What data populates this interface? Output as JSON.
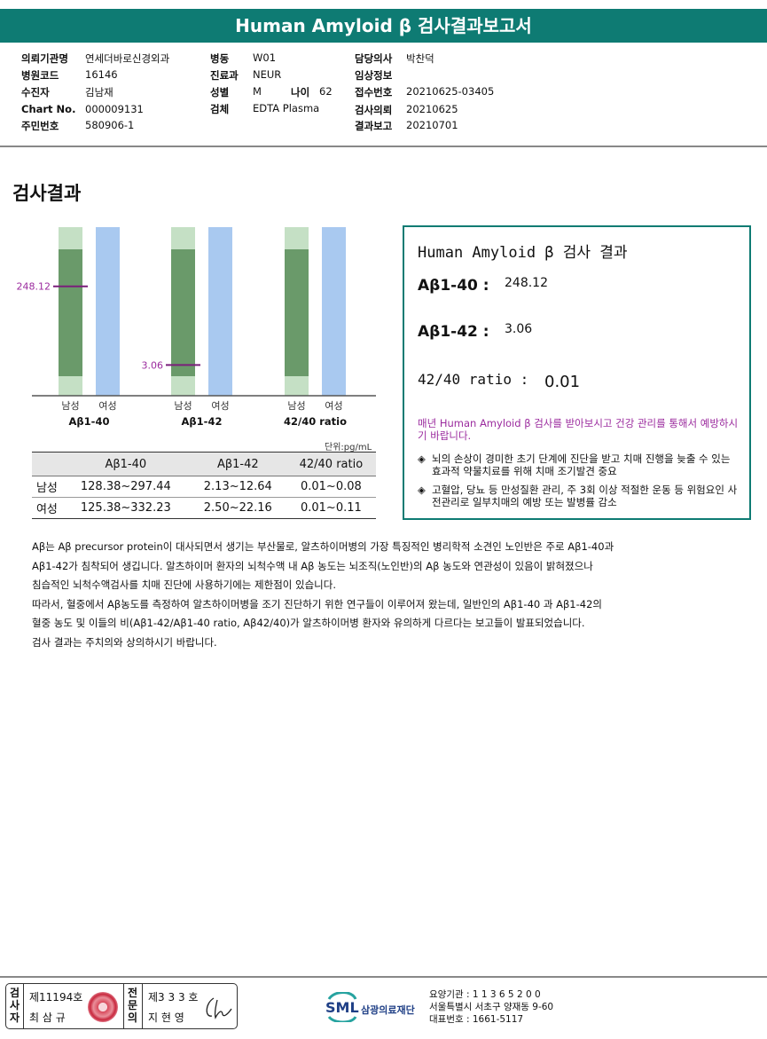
{
  "header": {
    "title": "Human Amyloid β 검사결과보고서"
  },
  "patient": {
    "institution": {
      "label": "의뢰기관명",
      "value": "연세더바로신경외과"
    },
    "hospital_code": {
      "label": "병원코드",
      "value": "16146"
    },
    "examinee": {
      "label": "수진자",
      "value": "김남재"
    },
    "chart_no": {
      "label": "Chart No.",
      "value": "000009131"
    },
    "resident_no": {
      "label": "주민번호",
      "value": "580906-1"
    },
    "ward": {
      "label": "병동",
      "value": "W01"
    },
    "department": {
      "label": "진료과",
      "value": "NEUR"
    },
    "sex": {
      "label": "성별",
      "value": "M"
    },
    "age": {
      "label": "나이",
      "value": "62"
    },
    "specimen": {
      "label": "검체",
      "value": "EDTA Plasma"
    },
    "doctor": {
      "label": "담당의사",
      "value": "박찬덕"
    },
    "clinical_info": {
      "label": "임상정보",
      "value": ""
    },
    "receipt_no": {
      "label": "접수번호",
      "value": "20210625-03405"
    },
    "request_date": {
      "label": "검사의뢰",
      "value": "20210625"
    },
    "report_date": {
      "label": "결과보고",
      "value": "20210701"
    }
  },
  "section_title": "검사결과",
  "chart_data": {
    "type": "bar",
    "categories": [
      "Aβ1-40",
      "Aβ1-42",
      "42/40 ratio"
    ],
    "sub_labels": [
      "남성",
      "여성"
    ],
    "series": [
      {
        "name": "남성",
        "ranges": [
          [
            128.38,
            297.44
          ],
          [
            2.13,
            12.64
          ],
          [
            0.01,
            0.08
          ]
        ]
      },
      {
        "name": "여성",
        "ranges": [
          [
            125.38,
            332.23
          ],
          [
            2.5,
            22.16
          ],
          [
            0.01,
            0.11
          ]
        ]
      }
    ],
    "markers": [
      {
        "category": "Aβ1-40",
        "value": 248.12,
        "label": "248.12"
      },
      {
        "category": "Aβ1-42",
        "value": 3.06,
        "label": "3.06"
      }
    ],
    "colors": {
      "male_range": "#6a9a6a",
      "male_outer": "#c5e0c5",
      "female": "#a9c9f0",
      "marker": "#7a1e7a",
      "axis": "#555555"
    }
  },
  "unit": "단위:pg/mL",
  "ref_table": {
    "headers": [
      "",
      "Aβ1-40",
      "Aβ1-42",
      "42/40 ratio"
    ],
    "rows": [
      [
        "남성",
        "128.38~297.44",
        "2.13~12.64",
        "0.01~0.08"
      ],
      [
        "여성",
        "125.38~332.23",
        "2.50~22.16",
        "0.01~0.11"
      ]
    ]
  },
  "result_box": {
    "title": "Human Amyloid β 검사 결과",
    "ab40_label": "Aβ1-40 :",
    "ab40_value": "248.12",
    "ab42_label": "Aβ1-42 :",
    "ab42_value": "3.06",
    "ratio_label": "42/40 ratio :",
    "ratio_value": "0.01",
    "advice": "매년 Human Amyloid β 검사를 받아보시고 건강 관리를 통해서 예방하시기 바랍니다.",
    "bullets": [
      "뇌의 손상이 경미한 초기 단계에 진단을 받고 치매 진행을 늦출 수 있는 효과적 약물치료를 위해 치매 조기발견 중요",
      "고혈압, 당뇨 등 만성질환 관리, 주 3회 이상 적절한 운동 등 위험요인 사전관리로 일부치매의 예방 또는 발병률 감소"
    ],
    "bullet_symbol": "◈"
  },
  "description": [
    "Aβ는 Aβ precursor protein이 대사되면서 생기는 부산물로, 알츠하이머병의 가장 특징적인 병리학적 소견인 노인반은 주로 Aβ1-40과",
    "Aβ1-42가 침착되어 생깁니다. 알츠하이머 환자의 뇌척수액 내 Aβ 농도는 뇌조직(노인반)의 Aβ 농도와 연관성이 있음이 밝혀졌으나",
    "침습적인 뇌척수액검사를 치매 진단에 사용하기에는 제한점이 있습니다.",
    "따라서, 혈중에서 Aβ농도를 측정하여 알츠하이머병을 조기 진단하기 위한 연구들이 이루어져 왔는데, 일반인의 Aβ1-40 과 Aβ1-42의",
    "혈중 농도 및 이들의 비(Aβ1-42/Aβ1-40 ratio, Aβ42/40)가 알츠하이머병 환자와 유의하게 다르다는 보고들이 발표되었습니다.",
    "검사 결과는 주치의와 상의하시기 바랍니다."
  ],
  "footer": {
    "examiner_label": "검사자",
    "examiner_license": "제11194호",
    "examiner_name": "최 삼 규",
    "reviewer_label": "전문의",
    "reviewer_license": "제3 3 3 호",
    "reviewer_name": "지 현 영",
    "logo_text": "SML",
    "foundation": "삼광의료재단",
    "care_code": "요양기관 : 1 1 3 6 5 2 0 0",
    "address": "서울특별시 서초구 양재동 9-60",
    "phone": "대표번호 : 1661-5117"
  }
}
